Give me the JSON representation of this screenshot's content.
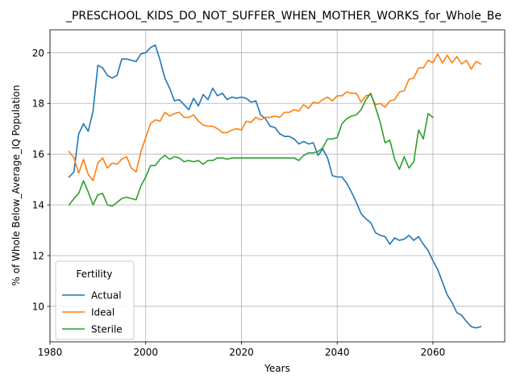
{
  "chart_data": {
    "type": "line",
    "title": "_PRESCHOOL_KIDS_DO_NOT_SUFFER_WHEN_MOTHER_WORKS_for_Whole_Be",
    "xlabel": "Years",
    "ylabel": "% of Whole Below_Average_IQ Population",
    "xlim": [
      1980,
      2075
    ],
    "ylim": [
      8.6,
      20.9
    ],
    "xticks": [
      1980,
      2000,
      2020,
      2040,
      2060
    ],
    "yticks": [
      10,
      12,
      14,
      16,
      18,
      20
    ],
    "grid": true,
    "legend": {
      "title": "Fertility",
      "placement": "lower-left"
    },
    "series": [
      {
        "name": "Actual",
        "color": "#1f77b4",
        "points": [
          [
            1984,
            15.1
          ],
          [
            1985,
            15.3
          ],
          [
            1986,
            16.8
          ],
          [
            1987,
            17.2
          ],
          [
            1988,
            16.9
          ],
          [
            1989,
            17.7
          ],
          [
            1990,
            19.5
          ],
          [
            1991,
            19.4
          ],
          [
            1992,
            19.1
          ],
          [
            1993,
            19.0
          ],
          [
            1994,
            19.1
          ],
          [
            1995,
            19.75
          ],
          [
            1996,
            19.75
          ],
          [
            1997,
            19.7
          ],
          [
            1998,
            19.65
          ],
          [
            1999,
            19.95
          ],
          [
            2000,
            20.0
          ],
          [
            2001,
            20.2
          ],
          [
            2002,
            20.3
          ],
          [
            2003,
            19.7
          ],
          [
            2004,
            19.0
          ],
          [
            2005,
            18.6
          ],
          [
            2006,
            18.1
          ],
          [
            2007,
            18.15
          ],
          [
            2008,
            17.95
          ],
          [
            2009,
            17.75
          ],
          [
            2010,
            18.2
          ],
          [
            2011,
            17.9
          ],
          [
            2012,
            18.35
          ],
          [
            2013,
            18.15
          ],
          [
            2014,
            18.6
          ],
          [
            2015,
            18.3
          ],
          [
            2016,
            18.4
          ],
          [
            2017,
            18.15
          ],
          [
            2018,
            18.25
          ],
          [
            2019,
            18.2
          ],
          [
            2020,
            18.25
          ],
          [
            2021,
            18.2
          ],
          [
            2022,
            18.05
          ],
          [
            2023,
            18.1
          ],
          [
            2024,
            17.55
          ],
          [
            2025,
            17.4
          ],
          [
            2026,
            17.1
          ],
          [
            2027,
            17.05
          ],
          [
            2028,
            16.8
          ],
          [
            2029,
            16.7
          ],
          [
            2030,
            16.7
          ],
          [
            2031,
            16.6
          ],
          [
            2032,
            16.4
          ],
          [
            2033,
            16.5
          ],
          [
            2034,
            16.4
          ],
          [
            2035,
            16.45
          ],
          [
            2036,
            15.95
          ],
          [
            2037,
            16.2
          ],
          [
            2038,
            15.85
          ],
          [
            2039,
            15.15
          ],
          [
            2040,
            15.1
          ],
          [
            2041,
            15.1
          ],
          [
            2042,
            14.85
          ],
          [
            2043,
            14.5
          ],
          [
            2044,
            14.1
          ],
          [
            2045,
            13.65
          ],
          [
            2046,
            13.45
          ],
          [
            2047,
            13.3
          ],
          [
            2048,
            12.9
          ],
          [
            2049,
            12.8
          ],
          [
            2050,
            12.75
          ],
          [
            2051,
            12.45
          ],
          [
            2052,
            12.7
          ],
          [
            2053,
            12.6
          ],
          [
            2054,
            12.65
          ],
          [
            2055,
            12.8
          ],
          [
            2056,
            12.6
          ],
          [
            2057,
            12.75
          ],
          [
            2058,
            12.45
          ],
          [
            2059,
            12.2
          ],
          [
            2060,
            11.8
          ],
          [
            2061,
            11.45
          ],
          [
            2062,
            10.95
          ],
          [
            2063,
            10.45
          ],
          [
            2064,
            10.15
          ],
          [
            2065,
            9.75
          ],
          [
            2066,
            9.65
          ],
          [
            2067,
            9.4
          ],
          [
            2068,
            9.2
          ],
          [
            2069,
            9.15
          ],
          [
            2070,
            9.2
          ]
        ]
      },
      {
        "name": "Ideal",
        "color": "#ff7f0e",
        "points": [
          [
            1984,
            16.1
          ],
          [
            1985,
            15.85
          ],
          [
            1986,
            15.25
          ],
          [
            1987,
            15.8
          ],
          [
            1988,
            15.2
          ],
          [
            1989,
            14.95
          ],
          [
            1990,
            15.65
          ],
          [
            1991,
            15.85
          ],
          [
            1992,
            15.45
          ],
          [
            1993,
            15.65
          ],
          [
            1994,
            15.6
          ],
          [
            1995,
            15.8
          ],
          [
            1996,
            15.9
          ],
          [
            1997,
            15.45
          ],
          [
            1998,
            15.3
          ],
          [
            1999,
            16.1
          ],
          [
            2000,
            16.65
          ],
          [
            2001,
            17.2
          ],
          [
            2002,
            17.35
          ],
          [
            2003,
            17.3
          ],
          [
            2004,
            17.65
          ],
          [
            2005,
            17.5
          ],
          [
            2006,
            17.6
          ],
          [
            2007,
            17.65
          ],
          [
            2008,
            17.45
          ],
          [
            2009,
            17.45
          ],
          [
            2010,
            17.55
          ],
          [
            2011,
            17.3
          ],
          [
            2012,
            17.15
          ],
          [
            2013,
            17.1
          ],
          [
            2014,
            17.1
          ],
          [
            2015,
            17.0
          ],
          [
            2016,
            16.85
          ],
          [
            2017,
            16.85
          ],
          [
            2018,
            16.95
          ],
          [
            2019,
            17.0
          ],
          [
            2020,
            16.95
          ],
          [
            2021,
            17.3
          ],
          [
            2022,
            17.25
          ],
          [
            2023,
            17.45
          ],
          [
            2024,
            17.35
          ],
          [
            2025,
            17.45
          ],
          [
            2026,
            17.45
          ],
          [
            2027,
            17.5
          ],
          [
            2028,
            17.45
          ],
          [
            2029,
            17.65
          ],
          [
            2030,
            17.65
          ],
          [
            2031,
            17.75
          ],
          [
            2032,
            17.7
          ],
          [
            2033,
            17.95
          ],
          [
            2034,
            17.8
          ],
          [
            2035,
            18.05
          ],
          [
            2036,
            18.0
          ],
          [
            2037,
            18.15
          ],
          [
            2038,
            18.25
          ],
          [
            2039,
            18.1
          ],
          [
            2040,
            18.3
          ],
          [
            2041,
            18.3
          ],
          [
            2042,
            18.45
          ],
          [
            2043,
            18.4
          ],
          [
            2044,
            18.4
          ],
          [
            2045,
            18.05
          ],
          [
            2046,
            18.3
          ],
          [
            2047,
            18.35
          ],
          [
            2048,
            17.95
          ],
          [
            2049,
            18.0
          ],
          [
            2050,
            17.85
          ],
          [
            2051,
            18.1
          ],
          [
            2052,
            18.15
          ],
          [
            2053,
            18.45
          ],
          [
            2054,
            18.5
          ],
          [
            2055,
            18.95
          ],
          [
            2056,
            19.0
          ],
          [
            2057,
            19.4
          ],
          [
            2058,
            19.4
          ],
          [
            2059,
            19.7
          ],
          [
            2060,
            19.6
          ],
          [
            2061,
            19.95
          ],
          [
            2062,
            19.6
          ],
          [
            2063,
            19.9
          ],
          [
            2064,
            19.6
          ],
          [
            2065,
            19.85
          ],
          [
            2066,
            19.55
          ],
          [
            2067,
            19.7
          ],
          [
            2068,
            19.35
          ],
          [
            2069,
            19.65
          ],
          [
            2070,
            19.55
          ]
        ]
      },
      {
        "name": "Sterile",
        "color": "#2ca02c",
        "points": [
          [
            1984,
            14.0
          ],
          [
            1985,
            14.25
          ],
          [
            1986,
            14.45
          ],
          [
            1987,
            14.95
          ],
          [
            1988,
            14.5
          ],
          [
            1989,
            14.0
          ],
          [
            1990,
            14.4
          ],
          [
            1991,
            14.45
          ],
          [
            1992,
            14.0
          ],
          [
            1993,
            13.95
          ],
          [
            1994,
            14.1
          ],
          [
            1995,
            14.25
          ],
          [
            1996,
            14.3
          ],
          [
            1997,
            14.25
          ],
          [
            1998,
            14.2
          ],
          [
            1999,
            14.75
          ],
          [
            2000,
            15.1
          ],
          [
            2001,
            15.55
          ],
          [
            2002,
            15.55
          ],
          [
            2003,
            15.8
          ],
          [
            2004,
            15.95
          ],
          [
            2005,
            15.8
          ],
          [
            2006,
            15.9
          ],
          [
            2007,
            15.85
          ],
          [
            2008,
            15.7
          ],
          [
            2009,
            15.75
          ],
          [
            2010,
            15.7
          ],
          [
            2011,
            15.75
          ],
          [
            2012,
            15.6
          ],
          [
            2013,
            15.75
          ],
          [
            2014,
            15.75
          ],
          [
            2015,
            15.85
          ],
          [
            2016,
            15.85
          ],
          [
            2017,
            15.8
          ],
          [
            2018,
            15.85
          ],
          [
            2019,
            15.85
          ],
          [
            2020,
            15.85
          ],
          [
            2021,
            15.85
          ],
          [
            2022,
            15.85
          ],
          [
            2023,
            15.85
          ],
          [
            2024,
            15.85
          ],
          [
            2025,
            15.85
          ],
          [
            2026,
            15.85
          ],
          [
            2027,
            15.85
          ],
          [
            2028,
            15.85
          ],
          [
            2029,
            15.85
          ],
          [
            2030,
            15.85
          ],
          [
            2031,
            15.85
          ],
          [
            2032,
            15.75
          ],
          [
            2033,
            15.95
          ],
          [
            2034,
            16.05
          ],
          [
            2035,
            16.05
          ],
          [
            2036,
            16.1
          ],
          [
            2037,
            16.25
          ],
          [
            2038,
            16.6
          ],
          [
            2039,
            16.6
          ],
          [
            2040,
            16.65
          ],
          [
            2041,
            17.2
          ],
          [
            2042,
            17.4
          ],
          [
            2043,
            17.5
          ],
          [
            2044,
            17.55
          ],
          [
            2045,
            17.75
          ],
          [
            2046,
            18.15
          ],
          [
            2047,
            18.4
          ],
          [
            2048,
            17.85
          ],
          [
            2049,
            17.25
          ],
          [
            2050,
            16.45
          ],
          [
            2051,
            16.55
          ],
          [
            2052,
            15.8
          ],
          [
            2053,
            15.4
          ],
          [
            2054,
            15.9
          ],
          [
            2055,
            15.45
          ],
          [
            2056,
            15.7
          ],
          [
            2057,
            16.95
          ],
          [
            2058,
            16.6
          ],
          [
            2059,
            17.6
          ],
          [
            2060,
            17.45
          ]
        ]
      }
    ]
  }
}
